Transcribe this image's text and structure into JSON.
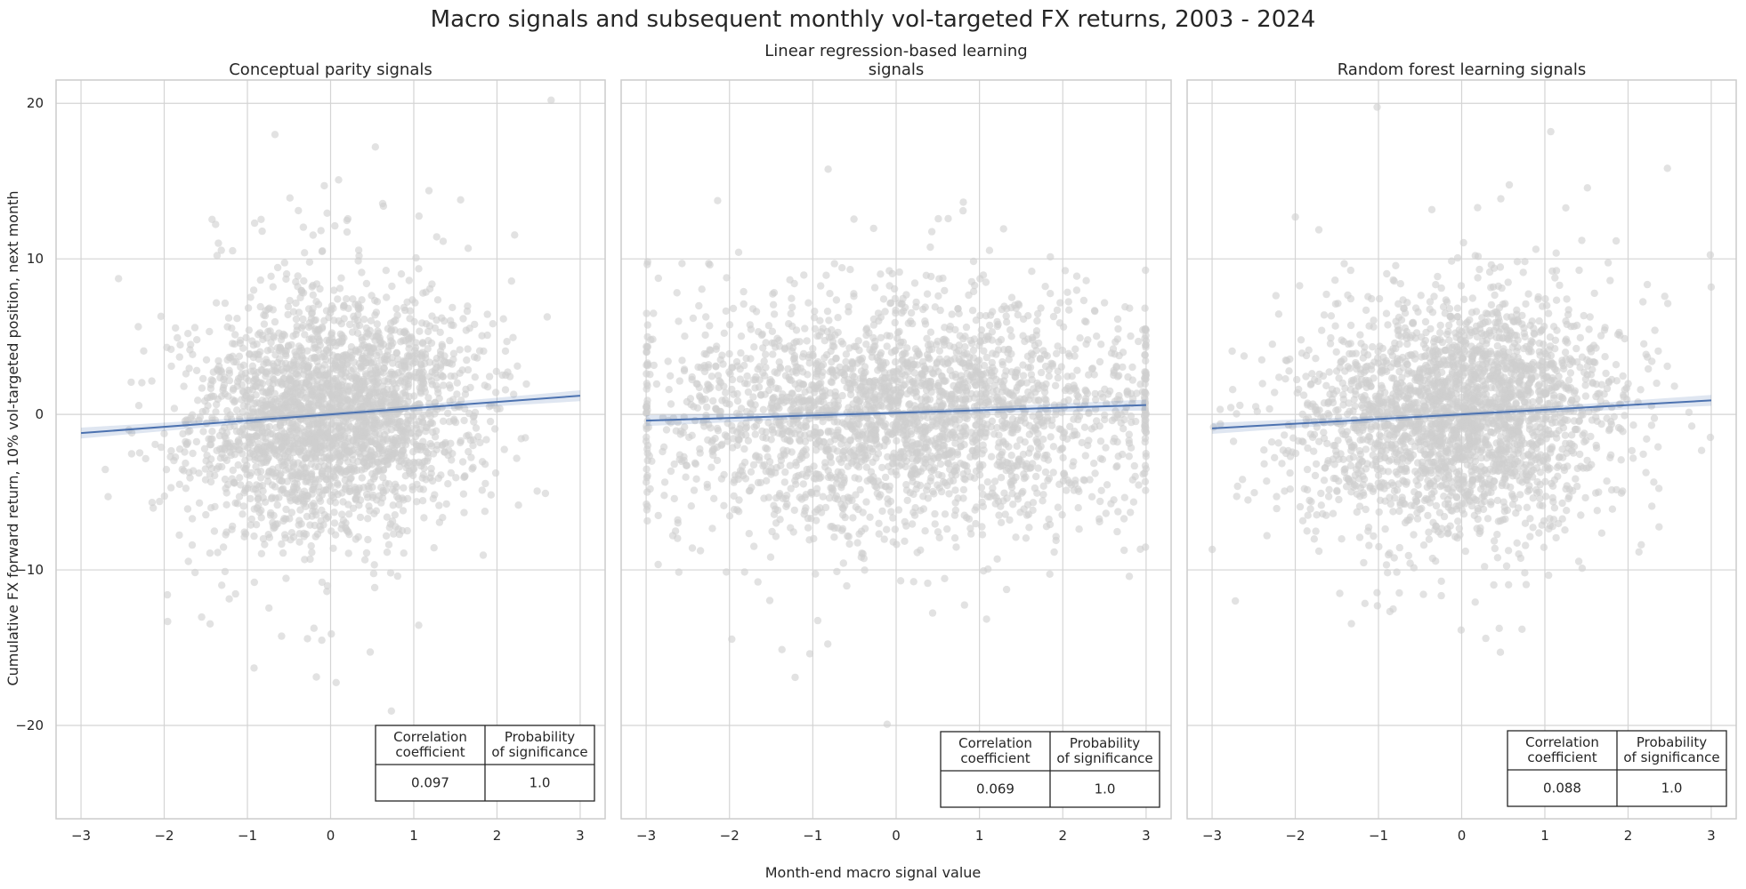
{
  "chart_data": [
    {
      "type": "scatter",
      "title": "Conceptual parity signals",
      "xlim": [
        -3.3,
        3.3
      ],
      "ylim": [
        -26,
        21.5
      ],
      "xticks": [
        -3,
        -2,
        -1,
        0,
        1,
        2,
        3
      ],
      "yticks": [
        -20,
        -10,
        0,
        10,
        20
      ],
      "point_color": "#cfcfcf",
      "line_color": "#4c72b0",
      "regression": {
        "x": [
          -3,
          3
        ],
        "y": [
          -1.2,
          1.2
        ]
      },
      "point_sd_x": 0.85,
      "points_note": "dense cloud of several thousand observations, centered near 0, returns mostly within -10 to 10",
      "table": {
        "header": [
          "Correlation\ncoefficient",
          "Probability\nof significance"
        ],
        "row": [
          "0.097",
          "1.0"
        ]
      }
    },
    {
      "type": "scatter",
      "title": "Linear regression-based learning\nsignals",
      "xlim": [
        -3.3,
        3.3
      ],
      "ylim": [
        -26,
        21.5
      ],
      "xticks": [
        -3,
        -2,
        -1,
        0,
        1,
        2,
        3
      ],
      "yticks": [
        -20,
        -10,
        0,
        10,
        20
      ],
      "point_color": "#cfcfcf",
      "line_color": "#4c72b0",
      "regression": {
        "x": [
          -3,
          3
        ],
        "y": [
          -0.4,
          0.6
        ]
      },
      "point_sd_x": 1.5,
      "points_note": "wide cloud spanning full signal range with clusters at the -3 and 3 caps",
      "table": {
        "header": [
          "Correlation\ncoefficient",
          "Probability\nof significance"
        ],
        "row": [
          "0.069",
          "1.0"
        ]
      }
    },
    {
      "type": "scatter",
      "title": "Random forest learning signals",
      "xlim": [
        -3.3,
        3.3
      ],
      "ylim": [
        -26,
        21.5
      ],
      "xticks": [
        -3,
        -2,
        -1,
        0,
        1,
        2,
        3
      ],
      "yticks": [
        -20,
        -10,
        0,
        10,
        20
      ],
      "point_color": "#cfcfcf",
      "line_color": "#4c72b0",
      "regression": {
        "x": [
          -3,
          3
        ],
        "y": [
          -0.9,
          0.9
        ]
      },
      "point_sd_x": 0.95,
      "points_note": "dense cloud centered near 0, returns mostly within -10 to 10",
      "table": {
        "header": [
          "Correlation\ncoefficient",
          "Probability\nof significance"
        ],
        "row": [
          "0.088",
          "1.0"
        ]
      }
    }
  ],
  "figure": {
    "suptitle": "Macro signals and subsequent monthly vol-targeted FX returns, 2003 - 2024",
    "xlabel": "Month-end macro signal value",
    "ylabel": "Cumulative FX forward return, 10% vol-targeted position, next month"
  }
}
